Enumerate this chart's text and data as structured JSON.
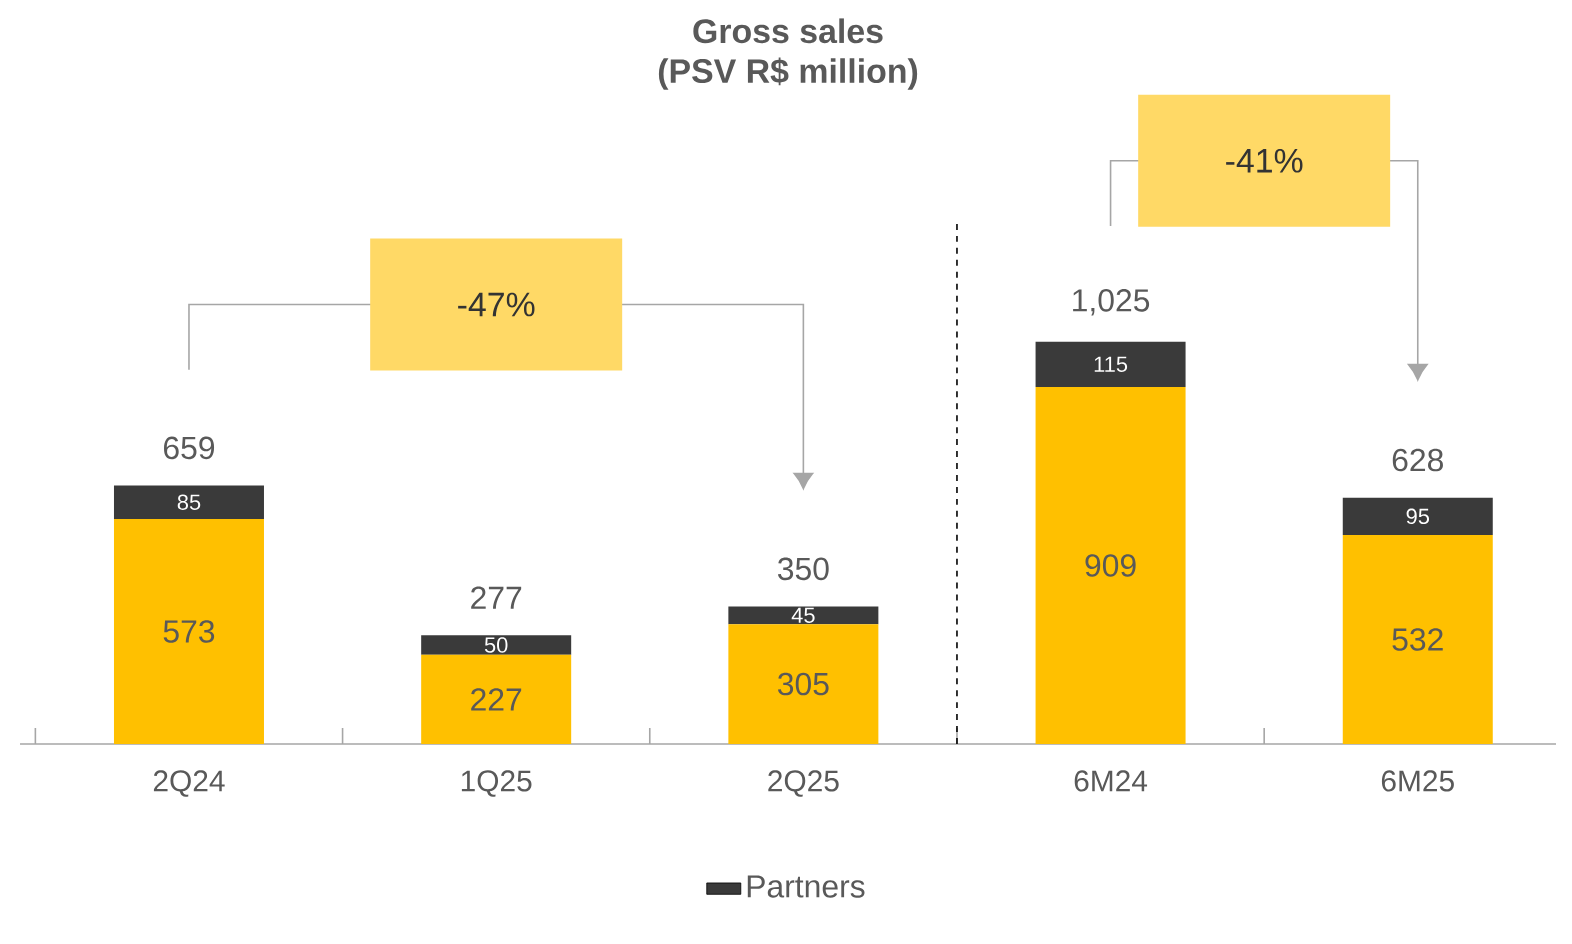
{
  "chart_data": {
    "type": "bar",
    "title": "Gross sales",
    "subtitle": "(PSV R$ million)",
    "categories": [
      "2Q24",
      "1Q25",
      "2Q25",
      "6M24",
      "6M25"
    ],
    "stacked": true,
    "series": [
      {
        "color": "#ffc000",
        "values": [
          573,
          227,
          305,
          909,
          532
        ]
      },
      {
        "name": "Partners",
        "color": "#3a3a3a",
        "values": [
          85,
          50,
          45,
          115,
          95
        ]
      }
    ],
    "data_labels": true,
    "totals": [
      "659",
      "277",
      "350",
      "1,025",
      "628"
    ],
    "annotations": [
      "-47%",
      "-41%"
    ],
    "legend": "bottom"
  }
}
